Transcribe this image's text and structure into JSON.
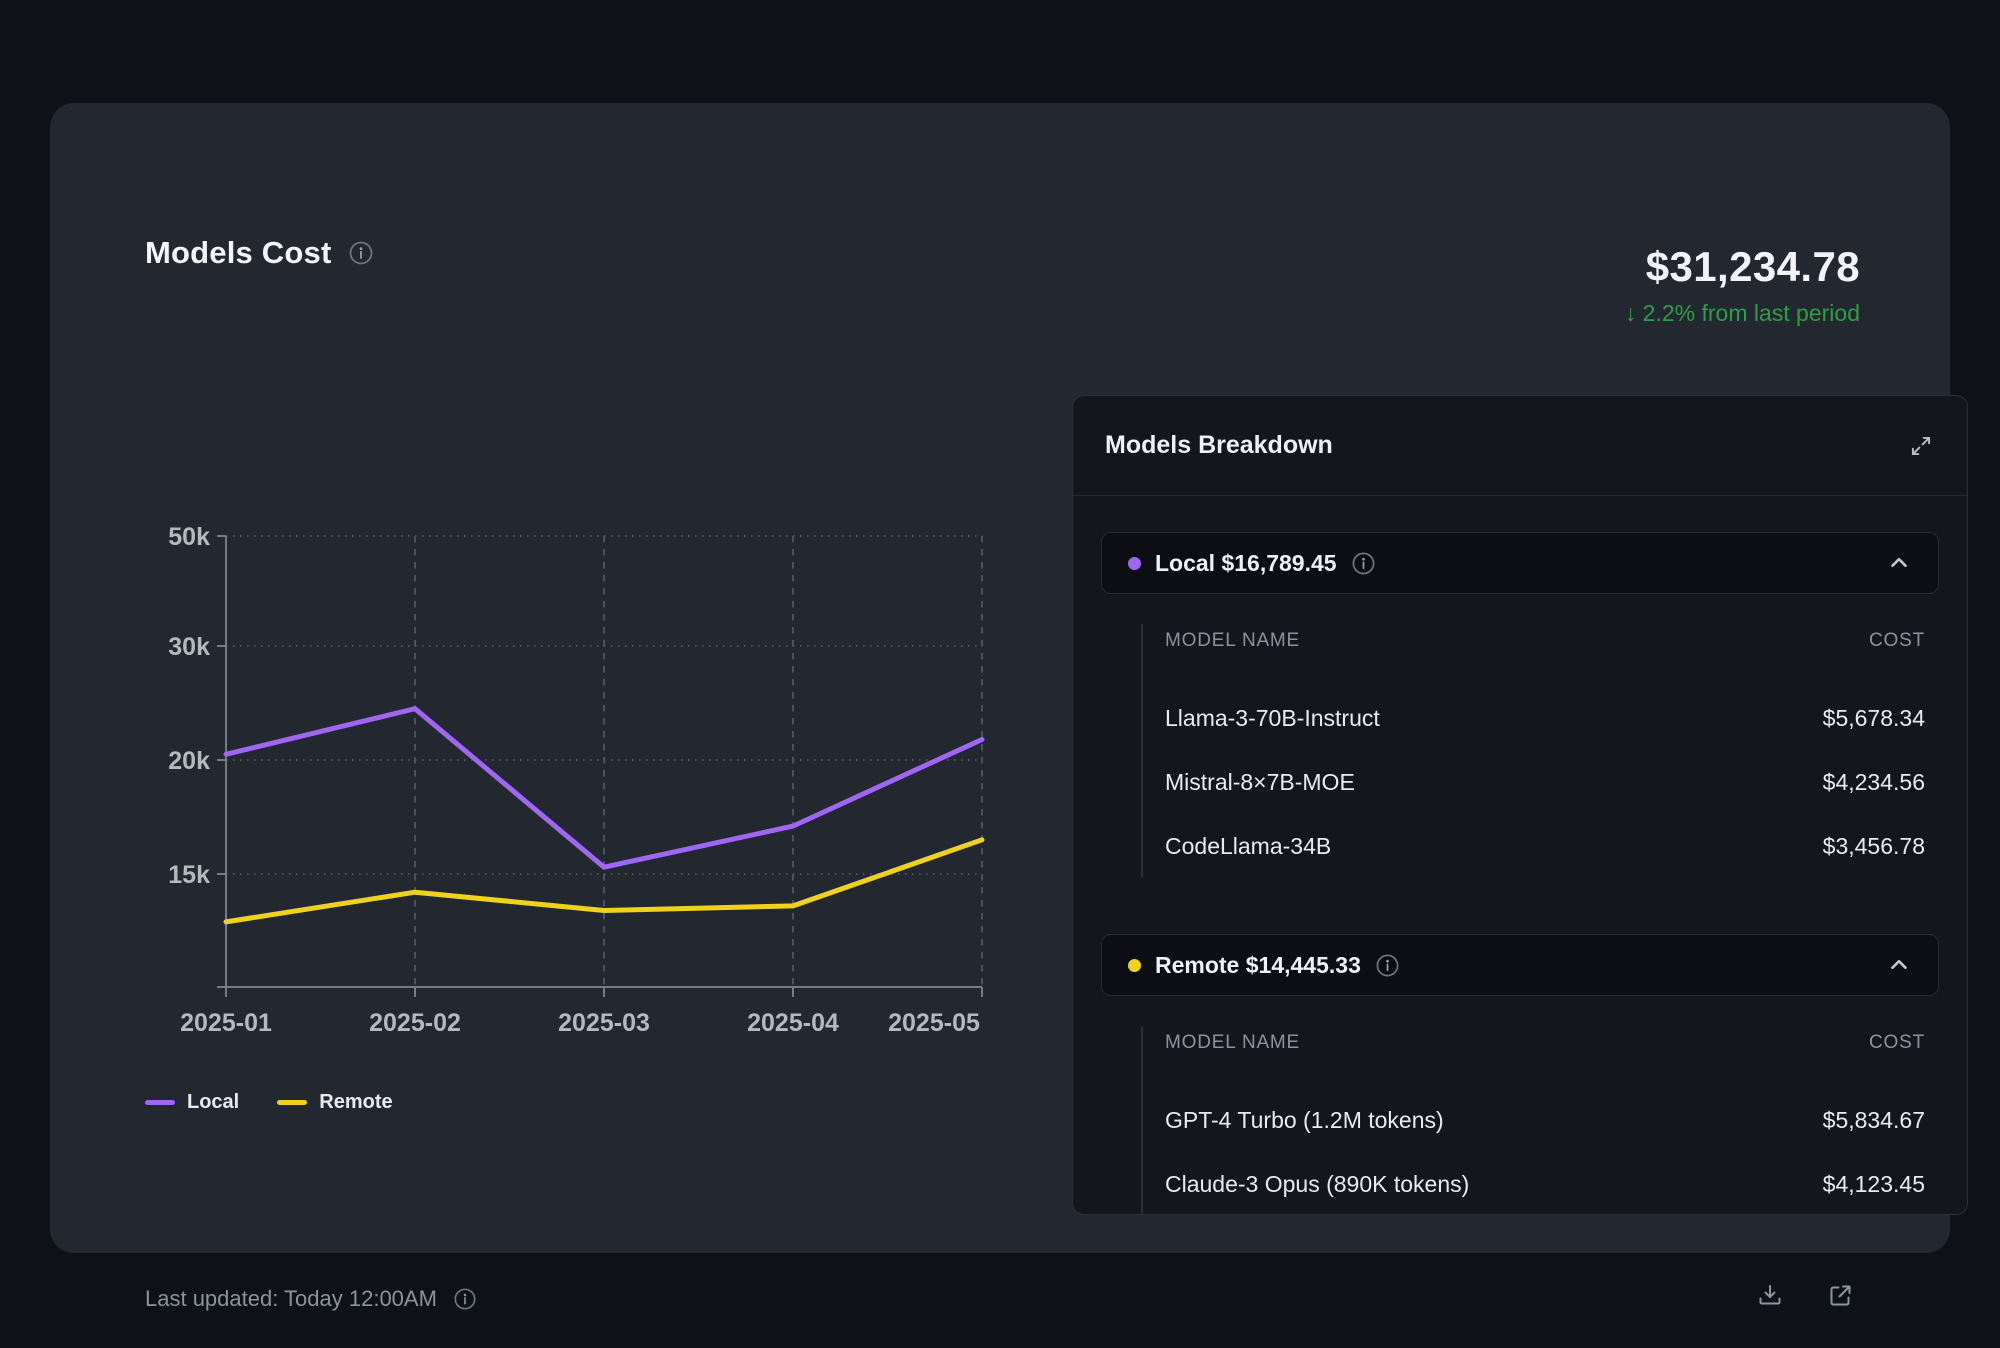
{
  "header": {
    "title": "Models Cost"
  },
  "summary": {
    "total": "$31,234.78",
    "delta": "↓ 2.2% from last period",
    "delta_color": "#2f9e44"
  },
  "chart_data": {
    "type": "line",
    "x": [
      "2025-01",
      "2025-02",
      "2025-03",
      "2025-04",
      "2025-05"
    ],
    "series": [
      {
        "name": "Local",
        "color": "#9e66f2",
        "values": [
          20500,
          24500,
          15300,
          17100,
          21800
        ]
      },
      {
        "name": "Remote",
        "color": "#efd21e",
        "values": [
          12900,
          14200,
          13400,
          13600,
          16500
        ]
      }
    ],
    "y_ticks": [
      "15k",
      "20k",
      "30k",
      "50k"
    ],
    "y_tick_values": [
      15000,
      20000,
      30000,
      50000
    ],
    "grid": "dotted horizontal gridlines at each y tick, dashed vertical gridlines at each month",
    "legend_position": "bottom-left"
  },
  "breakdown": {
    "title": "Models Breakdown",
    "sections": [
      {
        "name": "Local",
        "total": "$16,789.45",
        "color": "#9e66f2",
        "columns": [
          "MODEL NAME",
          "COST"
        ],
        "rows": [
          [
            "Llama-3-70B-Instruct",
            "$5,678.34"
          ],
          [
            "Mistral-8×7B-MOE",
            "$4,234.56"
          ],
          [
            "CodeLlama-34B",
            "$3,456.78"
          ]
        ]
      },
      {
        "name": "Remote",
        "total": "$14,445.33",
        "color": "#efd21e",
        "columns": [
          "MODEL NAME",
          "COST"
        ],
        "rows": [
          [
            "GPT-4 Turbo (1.2M tokens)",
            "$5,834.67"
          ],
          [
            "Claude-3 Opus (890K tokens)",
            "$4,123.45"
          ]
        ]
      }
    ]
  },
  "footer": {
    "last_updated": "Last updated: Today 12:00AM"
  },
  "icons": {
    "title_info": "info-circle",
    "panel_expand": "expand-diagonal-arrows",
    "section_info": "info-circle",
    "section_collapse": "chevron-up",
    "footer_info": "info-circle",
    "download": "download-tray",
    "open_external": "external-link"
  }
}
